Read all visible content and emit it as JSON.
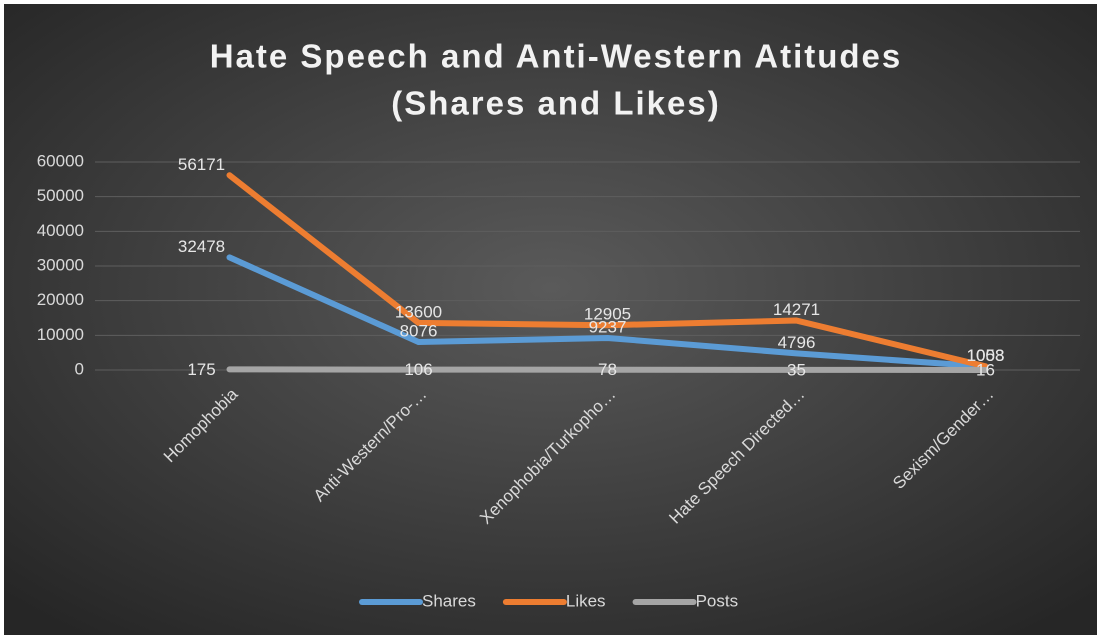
{
  "chart_data": {
    "type": "line",
    "title": [
      "Hate Speech and Anti-Western Atitudes",
      "(Shares and Likes)"
    ],
    "categories": [
      "Homophobia",
      "Anti-Western/Pro-…",
      "Xenophobia/Turkopho…",
      "Hate Speech Directed…",
      "Sexism/Gender…"
    ],
    "series": [
      {
        "name": "Shares",
        "color": "#5b9bd5",
        "values": [
          32478,
          8076,
          9237,
          4796,
          1003
        ]
      },
      {
        "name": "Likes",
        "color": "#ed7d31",
        "values": [
          56171,
          13600,
          12905,
          14271,
          1058
        ]
      },
      {
        "name": "Posts",
        "color": "#a5a5a5",
        "values": [
          175,
          106,
          78,
          35,
          16
        ]
      }
    ],
    "ylim": [
      0,
      60000
    ],
    "yticks": [
      0,
      10000,
      20000,
      30000,
      40000,
      50000,
      60000
    ],
    "grid": true,
    "legend": "bottom"
  }
}
